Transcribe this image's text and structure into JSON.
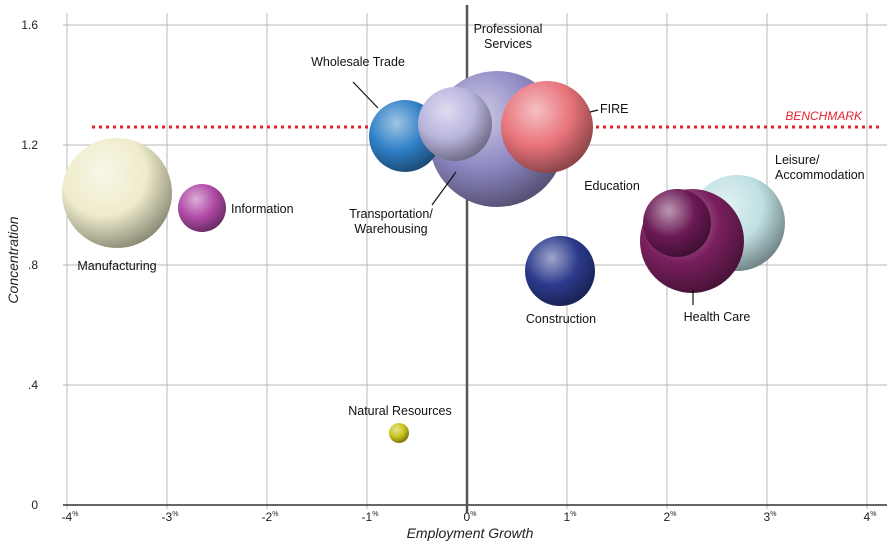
{
  "chart_data": {
    "type": "scatter",
    "subtype": "bubble",
    "xlabel": "Employment Growth",
    "ylabel": "Concentration",
    "xlim": [
      -4,
      4
    ],
    "ylim": [
      0,
      1.6
    ],
    "x_ticks": [
      {
        "value": -4,
        "num": "-4",
        "unit": "%"
      },
      {
        "value": -3,
        "num": "-3",
        "unit": "%"
      },
      {
        "value": -2,
        "num": "-2",
        "unit": "%"
      },
      {
        "value": -1,
        "num": "-1",
        "unit": "%"
      },
      {
        "value": 0,
        "num": "0",
        "unit": "%"
      },
      {
        "value": 1,
        "num": "1",
        "unit": "%"
      },
      {
        "value": 2,
        "num": "2",
        "unit": "%"
      },
      {
        "value": 3,
        "num": "3",
        "unit": "%"
      },
      {
        "value": 4,
        "num": "4",
        "unit": "%"
      }
    ],
    "y_ticks": [
      {
        "value": 0,
        "label": "0"
      },
      {
        "value": 0.4,
        "label": ".4"
      },
      {
        "value": 0.8,
        "label": ".8"
      },
      {
        "value": 1.2,
        "label": "1.2"
      },
      {
        "value": 1.6,
        "label": "1.6"
      }
    ],
    "grid": true,
    "benchmark": {
      "label": "BENCHMARK",
      "y": 1.26,
      "x_start": -3.75,
      "color": "#e2232a"
    },
    "bubbles": [
      {
        "name": "Professional Services",
        "lines": [
          "Professional",
          "Services"
        ],
        "x": 0.3,
        "y": 1.22,
        "size": 68,
        "color": "#8f89c4"
      },
      {
        "name": "Manufacturing",
        "lines": [
          "Manufacturing"
        ],
        "x": -3.5,
        "y": 1.04,
        "size": 55,
        "color": "#efeccb"
      },
      {
        "name": "Leisure/Accommodation",
        "lines": [
          "Leisure/",
          "Accommodation"
        ],
        "x": 2.7,
        "y": 0.94,
        "size": 48,
        "color": "#bfe0e3"
      },
      {
        "name": "Health Care",
        "lines": [
          "Health Care"
        ],
        "x": 2.25,
        "y": 0.88,
        "size": 52,
        "color": "#7a1f5e"
      },
      {
        "name": "Education",
        "lines": [
          "Education"
        ],
        "x": 2.1,
        "y": 0.94,
        "size": 34,
        "color": "#6b1a55"
      },
      {
        "name": "FIRE",
        "lines": [
          "FIRE"
        ],
        "x": 0.8,
        "y": 1.26,
        "size": 46,
        "color": "#e8737a"
      },
      {
        "name": "Wholesale Trade",
        "lines": [
          "Wholesale Trade"
        ],
        "x": -0.62,
        "y": 1.23,
        "size": 36,
        "color": "#2f7fc6"
      },
      {
        "name": "Transportation/Warehousing",
        "lines": [
          "Transportation/",
          "Warehousing"
        ],
        "x": -0.12,
        "y": 1.27,
        "size": 37,
        "color": "#b8b4dd"
      },
      {
        "name": "Construction",
        "lines": [
          "Construction"
        ],
        "x": 0.93,
        "y": 0.78,
        "size": 35,
        "color": "#2b3a8c"
      },
      {
        "name": "Information",
        "lines": [
          "Information"
        ],
        "x": -2.65,
        "y": 0.99,
        "size": 24,
        "color": "#b04aa6"
      },
      {
        "name": "Natural Resources",
        "lines": [
          "Natural Resources"
        ],
        "x": -0.68,
        "y": 0.24,
        "size": 10,
        "color": "#c9c41a"
      }
    ]
  }
}
